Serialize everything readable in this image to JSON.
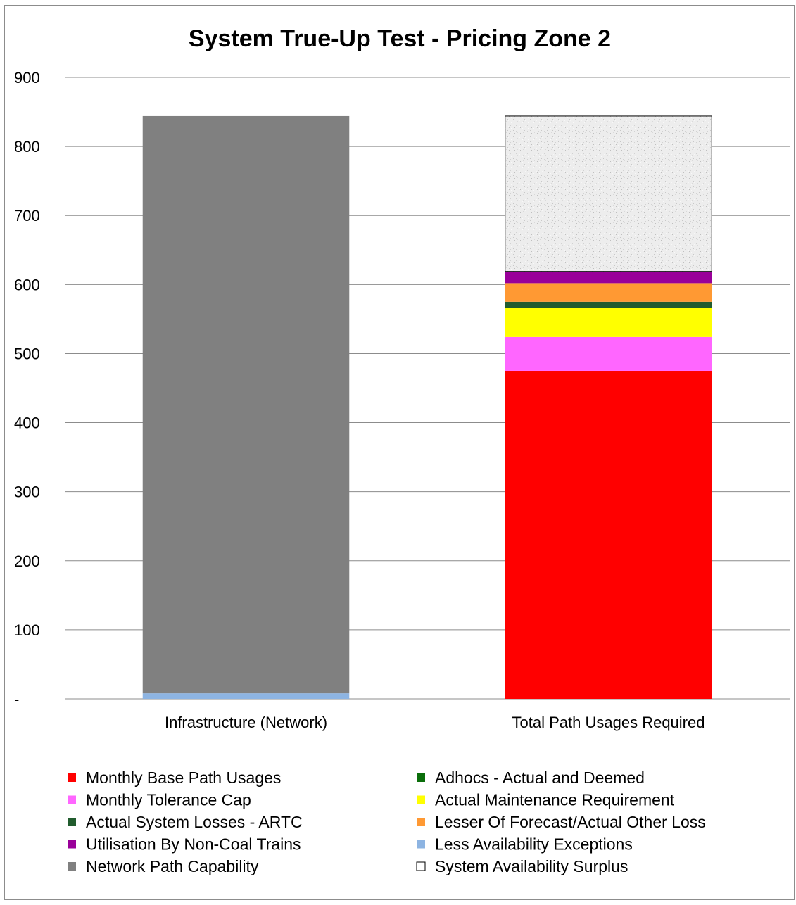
{
  "chart_data": {
    "type": "bar",
    "stacked": true,
    "title": "System True-Up Test - Pricing Zone 2",
    "xlabel": "",
    "ylabel": "",
    "ylim": [
      0,
      900
    ],
    "y_ticks": [
      {
        "value": 0,
        "label": "-"
      },
      {
        "value": 100,
        "label": "100"
      },
      {
        "value": 200,
        "label": "200"
      },
      {
        "value": 300,
        "label": "300"
      },
      {
        "value": 400,
        "label": "400"
      },
      {
        "value": 500,
        "label": "500"
      },
      {
        "value": 600,
        "label": "600"
      },
      {
        "value": 700,
        "label": "700"
      },
      {
        "value": 800,
        "label": "800"
      },
      {
        "value": 900,
        "label": "900"
      }
    ],
    "grid": true,
    "legend_position": "bottom",
    "categories": [
      "Infrastructure (Network)",
      "Total Path Usages Required"
    ],
    "series": [
      {
        "name": "Less Availability Exceptions",
        "color": "#8db4e2",
        "values": [
          8,
          0
        ]
      },
      {
        "name": "Network Path Capability",
        "color": "#808080",
        "values": [
          836,
          0
        ]
      },
      {
        "name": "Monthly Base Path Usages",
        "color": "#ff0000",
        "values": [
          0,
          475
        ]
      },
      {
        "name": "Monthly Tolerance Cap",
        "color": "#ff66ff",
        "values": [
          0,
          49
        ]
      },
      {
        "name": "Actual Maintenance Requirement",
        "color": "#ffff00",
        "values": [
          0,
          42
        ]
      },
      {
        "name": "Actual System Losses - ARTC",
        "color": "#215c2e",
        "values": [
          0,
          9
        ]
      },
      {
        "name": "Adhocs - Actual and Deemed",
        "color": "#00a000",
        "values": [
          0,
          0
        ]
      },
      {
        "name": "Lesser Of Forecast/Actual Other Loss",
        "color": "#ff9933",
        "values": [
          0,
          27
        ]
      },
      {
        "name": "Utilisation By Non-Coal Trains",
        "color": "#990099",
        "values": [
          0,
          17
        ]
      },
      {
        "name": "System Availability Surplus",
        "color": "#e8e8e8",
        "values": [
          0,
          225
        ]
      }
    ],
    "legend": [
      {
        "name": "Monthly Base Path Usages",
        "color": "#ff0000"
      },
      {
        "name": "Adhocs - Actual and Deemed",
        "color": "#0b6e0b"
      },
      {
        "name": "Monthly Tolerance Cap",
        "color": "#ff66ff"
      },
      {
        "name": "Actual Maintenance Requirement",
        "color": "#ffff00"
      },
      {
        "name": "Actual System Losses - ARTC",
        "color": "#215c2e"
      },
      {
        "name": "Lesser Of Forecast/Actual Other Loss",
        "color": "#ff9933"
      },
      {
        "name": "Utilisation By Non-Coal Trains",
        "color": "#990099"
      },
      {
        "name": "Less Availability Exceptions",
        "color": "#8db4e2"
      },
      {
        "name": "Network Path Capability",
        "color": "#808080"
      },
      {
        "name": "System Availability Surplus",
        "color": "#ffffff"
      }
    ]
  }
}
